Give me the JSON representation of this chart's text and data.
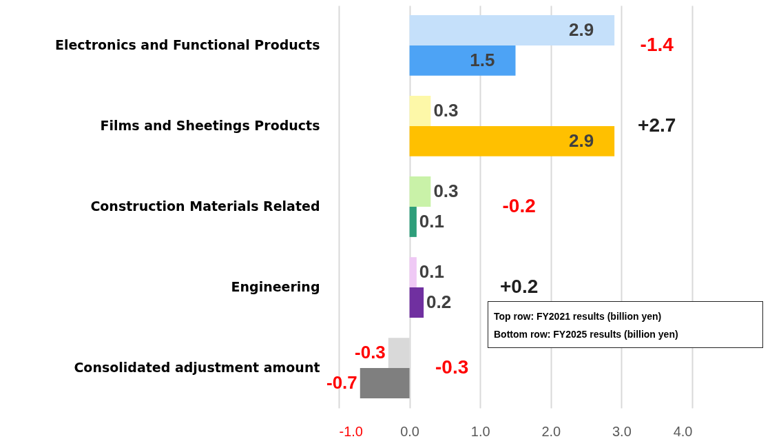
{
  "chart_data": {
    "type": "bar",
    "orientation": "horizontal",
    "categories": [
      "Electronics and Functional Products",
      "Films and Sheetings Products",
      "Construction Materials Related",
      "Engineering",
      "Consolidated adjustment amount"
    ],
    "series": [
      {
        "colors": [
          "#c5e0fa",
          "#fdf8a8",
          "#c9f2a8",
          "#efc9f5",
          "#d9d9d9"
        ],
        "values": [
          2.9,
          0.3,
          0.3,
          0.1,
          -0.3
        ]
      },
      {
        "colors": [
          "#4da3f5",
          "#ffc000",
          "#2e9e7a",
          "#7030a0",
          "#7f7f7f"
        ],
        "values": [
          1.5,
          2.9,
          0.1,
          0.2,
          -0.7
        ]
      }
    ],
    "xlim": [
      -1,
      4
    ],
    "xticks": [
      {
        "value": -1,
        "label": "-1.0"
      },
      {
        "value": 0,
        "label": "0.0"
      },
      {
        "value": 1,
        "label": "1.0"
      },
      {
        "value": 2,
        "label": "2.0"
      },
      {
        "value": 3,
        "label": "3.0"
      },
      {
        "value": 4,
        "label": "4.0"
      }
    ],
    "grid": "x",
    "data_labels": true,
    "annotations": [
      "-1.4",
      "+2.7",
      "-0.2",
      "+0.2",
      "-0.3",
      "Top row: FY2021 results (billion yen)",
      "Bottom row: FY2025 results (billion yen)"
    ]
  }
}
